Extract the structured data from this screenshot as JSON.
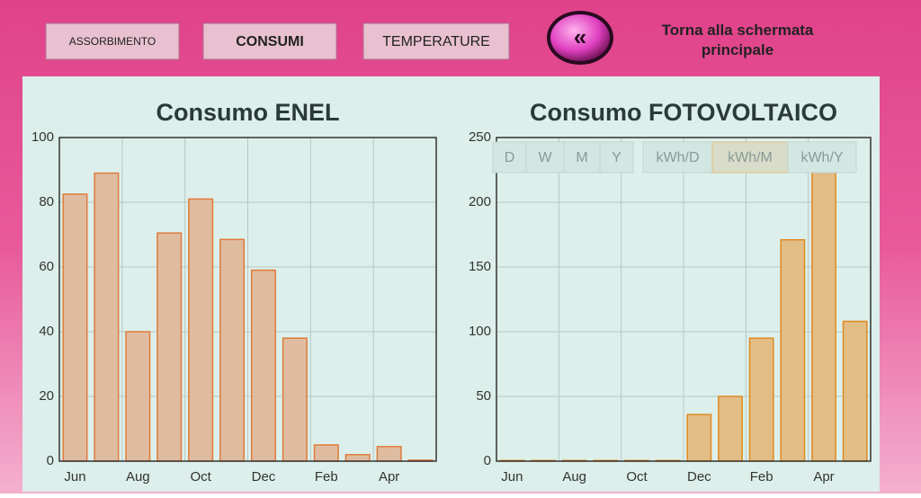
{
  "nav": {
    "buttons": [
      "ASSORBIMENTO",
      "CONSUMI",
      "TEMPERATURE"
    ],
    "back_label": "Torna alla schermata principale"
  },
  "toolbar": {
    "periods": [
      "D",
      "W",
      "M",
      "Y"
    ],
    "units": [
      "kWh/D",
      "kWh/M",
      "kWh/Y"
    ]
  },
  "chart_data": [
    {
      "type": "bar",
      "title": "Consumo ENEL",
      "categories": [
        "Jun",
        null,
        "Aug",
        null,
        "Oct",
        null,
        "Dec",
        null,
        "Feb",
        null,
        "Apr",
        null
      ],
      "values": [
        82.5,
        89,
        40,
        70.5,
        81,
        68.5,
        59,
        38,
        5,
        2,
        4.5,
        0.3
      ],
      "color": "#dfbca0",
      "edge_color": "#e07b39",
      "ylim": [
        0,
        100
      ],
      "yticks": [
        0,
        20,
        40,
        60,
        80,
        100
      ],
      "grid": true
    },
    {
      "type": "bar",
      "title": "Consumo FOTOVOLTAICO",
      "categories": [
        "Jun",
        null,
        "Aug",
        null,
        "Oct",
        null,
        "Dec",
        null,
        "Feb",
        null,
        "Apr",
        null
      ],
      "values": [
        0.5,
        0.5,
        0.5,
        0.5,
        0.5,
        0.5,
        36,
        50,
        95,
        171,
        226,
        108
      ],
      "color": "#e2bd85",
      "edge_color": "#e08a20",
      "ylim": [
        0,
        250
      ],
      "yticks": [
        0,
        50,
        100,
        150,
        200,
        250
      ],
      "grid": true
    }
  ]
}
